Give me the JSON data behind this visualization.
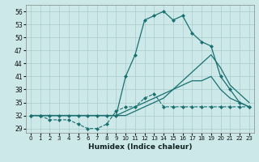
{
  "xlabel": "Humidex (Indice chaleur)",
  "bg_color": "#cce8e8",
  "grid_color": "#aacccc",
  "line_color": "#1a7070",
  "xlim": [
    -0.5,
    23.5
  ],
  "ylim": [
    28,
    57.5
  ],
  "yticks": [
    29,
    32,
    35,
    38,
    41,
    44,
    47,
    50,
    53,
    56
  ],
  "xticks": [
    0,
    1,
    2,
    3,
    4,
    5,
    6,
    7,
    8,
    9,
    10,
    11,
    12,
    13,
    14,
    15,
    16,
    17,
    18,
    19,
    20,
    21,
    22,
    23
  ],
  "series": [
    {
      "x": [
        0,
        1,
        2,
        3,
        4,
        5,
        6,
        7,
        8,
        9,
        10,
        11,
        12,
        13,
        14,
        15,
        16,
        17,
        18,
        19,
        20,
        21,
        22,
        23
      ],
      "y": [
        32,
        32,
        31,
        31,
        31,
        30,
        29,
        29,
        30,
        33,
        34,
        34,
        36,
        37,
        34,
        34,
        34,
        34,
        34,
        34,
        34,
        34,
        34,
        34
      ],
      "marker": "D",
      "markersize": 2.0,
      "linewidth": 0.8,
      "linestyle": "--"
    },
    {
      "x": [
        0,
        1,
        2,
        3,
        4,
        5,
        6,
        7,
        8,
        9,
        10,
        11,
        12,
        13,
        14,
        15,
        16,
        17,
        18,
        19,
        20,
        21,
        22,
        23
      ],
      "y": [
        32,
        32,
        32,
        32,
        32,
        32,
        32,
        32,
        32,
        32,
        33,
        34,
        35,
        36,
        37,
        38,
        39,
        40,
        40,
        41,
        38,
        36,
        35,
        34
      ],
      "marker": "None",
      "markersize": 0,
      "linewidth": 0.9,
      "linestyle": "-"
    },
    {
      "x": [
        0,
        1,
        2,
        3,
        4,
        5,
        6,
        7,
        8,
        9,
        10,
        11,
        12,
        13,
        14,
        15,
        16,
        17,
        18,
        19,
        20,
        21,
        22,
        23
      ],
      "y": [
        32,
        32,
        32,
        32,
        32,
        32,
        32,
        32,
        32,
        32,
        32,
        33,
        34,
        35,
        36,
        38,
        40,
        42,
        44,
        46,
        43,
        39,
        37,
        35
      ],
      "marker": "None",
      "markersize": 0,
      "linewidth": 0.9,
      "linestyle": "-"
    },
    {
      "x": [
        0,
        1,
        2,
        3,
        4,
        5,
        6,
        7,
        8,
        9,
        10,
        11,
        12,
        13,
        14,
        15,
        16,
        17,
        18,
        19,
        20,
        21,
        22,
        23
      ],
      "y": [
        32,
        32,
        32,
        32,
        32,
        32,
        32,
        32,
        32,
        32,
        41,
        46,
        54,
        55,
        56,
        54,
        55,
        51,
        49,
        48,
        41,
        38,
        35,
        34
      ],
      "marker": "D",
      "markersize": 2.0,
      "linewidth": 0.9,
      "linestyle": "-"
    }
  ]
}
